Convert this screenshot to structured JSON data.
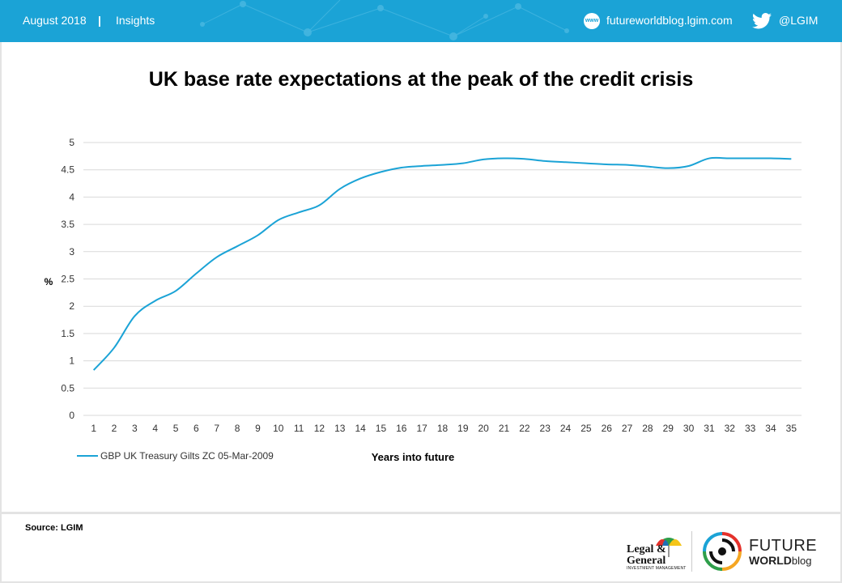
{
  "header": {
    "date": "August 2018",
    "separator": "|",
    "section": "Insights",
    "www_icon": "www",
    "website": "futureworldblog.lgim.com",
    "twitter_handle": "@LGIM",
    "bg_color": "#1ba3d6"
  },
  "chart_data": {
    "type": "line",
    "title": "UK base rate expectations at the peak of the credit crisis",
    "xlabel": "Years into future",
    "ylabel": "%",
    "ylim": [
      0,
      5
    ],
    "yticks": [
      "0",
      "0.5",
      "1",
      "1.5",
      "2",
      "2.5",
      "3",
      "3.5",
      "4",
      "4.5",
      "5"
    ],
    "x": [
      1,
      2,
      3,
      4,
      5,
      6,
      7,
      8,
      9,
      10,
      11,
      12,
      13,
      14,
      15,
      16,
      17,
      18,
      19,
      20,
      21,
      22,
      23,
      24,
      25,
      26,
      27,
      28,
      29,
      30,
      31,
      32,
      33,
      34,
      35
    ],
    "grid": true,
    "legend_position": "bottom-left",
    "series": [
      {
        "name": "GBP UK Treasury Gilts ZC 05-Mar-2009",
        "color": "#1ba3d6",
        "values": [
          0.83,
          1.24,
          1.82,
          2.1,
          2.28,
          2.6,
          2.9,
          3.1,
          3.3,
          3.58,
          3.72,
          3.85,
          4.15,
          4.34,
          4.46,
          4.54,
          4.57,
          4.59,
          4.62,
          4.69,
          4.71,
          4.7,
          4.66,
          4.64,
          4.62,
          4.6,
          4.59,
          4.56,
          4.53,
          4.57,
          4.71,
          4.71,
          4.71,
          4.71,
          4.7
        ]
      }
    ]
  },
  "footer": {
    "source": "Source: LGIM",
    "lg_logo_line1": "Legal &",
    "lg_logo_line2": "General",
    "lg_logo_line3": "INVESTMENT MANAGEMENT",
    "fw_logo_line1": "FUTURE",
    "fw_logo_world": "WORLD",
    "fw_logo_blog": "blog"
  }
}
